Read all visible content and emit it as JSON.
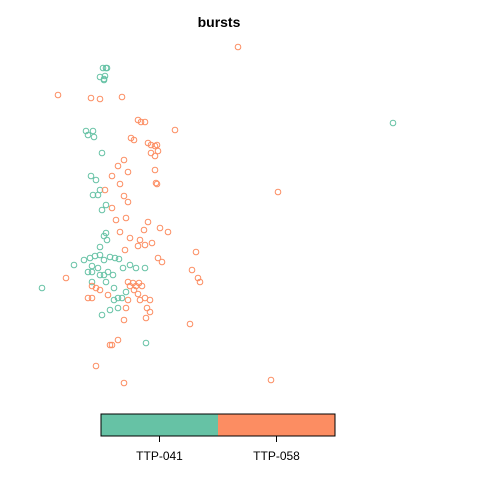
{
  "chart_data": {
    "type": "scatter",
    "title": "bursts",
    "xlabel": "",
    "ylabel": "",
    "legend": {
      "type": "color-bar",
      "placement": "bottom",
      "categories": [
        "TTP-041",
        "TTP-058"
      ]
    },
    "colors": {
      "TTP-041": "#66c2a5",
      "TTP-058": "#fc8d62"
    },
    "grid": false,
    "axes_visible": false,
    "series": [
      {
        "name": "TTP-041",
        "points": [
          [
            106,
            68
          ],
          [
            103,
            68
          ],
          [
            107,
            68
          ],
          [
            105,
            76
          ],
          [
            100,
            77
          ],
          [
            104,
            79
          ],
          [
            104,
            80
          ],
          [
            86,
            131
          ],
          [
            93,
            131
          ],
          [
            88,
            135
          ],
          [
            94,
            137
          ],
          [
            102,
            153
          ],
          [
            91,
            176
          ],
          [
            96,
            180
          ],
          [
            100,
            190
          ],
          [
            93,
            195
          ],
          [
            98,
            195
          ],
          [
            106,
            205
          ],
          [
            102,
            210
          ],
          [
            106,
            233
          ],
          [
            104,
            236
          ],
          [
            107,
            240
          ],
          [
            100,
            247
          ],
          [
            95,
            256
          ],
          [
            90,
            258
          ],
          [
            84,
            260
          ],
          [
            100,
            255
          ],
          [
            104,
            260
          ],
          [
            110,
            257
          ],
          [
            115,
            258
          ],
          [
            119,
            259
          ],
          [
            92,
            266
          ],
          [
            98,
            268
          ],
          [
            88,
            272
          ],
          [
            92,
            272
          ],
          [
            100,
            275
          ],
          [
            104,
            275
          ],
          [
            108,
            272
          ],
          [
            113,
            275
          ],
          [
            123,
            268
          ],
          [
            130,
            265
          ],
          [
            136,
            268
          ],
          [
            145,
            268
          ],
          [
            74,
            265
          ],
          [
            42,
            288
          ],
          [
            92,
            282
          ],
          [
            106,
            282
          ],
          [
            114,
            288
          ],
          [
            118,
            298
          ],
          [
            114,
            300
          ],
          [
            122,
            298
          ],
          [
            126,
            292
          ],
          [
            118,
            308
          ],
          [
            110,
            310
          ],
          [
            102,
            315
          ],
          [
            146,
            343
          ],
          [
            393,
            123
          ]
        ]
      },
      {
        "name": "TTP-058",
        "points": [
          [
            238,
            47
          ],
          [
            58,
            95
          ],
          [
            91,
            98
          ],
          [
            100,
            99
          ],
          [
            122,
            97
          ],
          [
            138,
            120
          ],
          [
            141,
            122
          ],
          [
            145,
            122
          ],
          [
            175,
            130
          ],
          [
            131,
            138
          ],
          [
            134,
            140
          ],
          [
            148,
            143
          ],
          [
            151,
            145
          ],
          [
            155,
            146
          ],
          [
            157,
            145
          ],
          [
            151,
            153
          ],
          [
            155,
            156
          ],
          [
            158,
            151
          ],
          [
            124,
            160
          ],
          [
            118,
            166
          ],
          [
            112,
            176
          ],
          [
            128,
            172
          ],
          [
            155,
            170
          ],
          [
            156,
            183
          ],
          [
            157,
            184
          ],
          [
            105,
            190
          ],
          [
            120,
            184
          ],
          [
            124,
            196
          ],
          [
            128,
            202
          ],
          [
            112,
            208
          ],
          [
            116,
            220
          ],
          [
            126,
            218
          ],
          [
            148,
            222
          ],
          [
            144,
            230
          ],
          [
            160,
            228
          ],
          [
            168,
            232
          ],
          [
            120,
            232
          ],
          [
            130,
            238
          ],
          [
            140,
            240
          ],
          [
            125,
            250
          ],
          [
            138,
            246
          ],
          [
            145,
            245
          ],
          [
            152,
            243
          ],
          [
            158,
            258
          ],
          [
            162,
            262
          ],
          [
            196,
            252
          ],
          [
            192,
            270
          ],
          [
            198,
            278
          ],
          [
            200,
            282
          ],
          [
            278,
            192
          ],
          [
            66,
            278
          ],
          [
            92,
            286
          ],
          [
            96,
            288
          ],
          [
            100,
            290
          ],
          [
            88,
            298
          ],
          [
            92,
            298
          ],
          [
            108,
            295
          ],
          [
            128,
            282
          ],
          [
            130,
            286
          ],
          [
            133,
            283
          ],
          [
            136,
            286
          ],
          [
            139,
            283
          ],
          [
            142,
            286
          ],
          [
            134,
            290
          ],
          [
            138,
            294
          ],
          [
            128,
            300
          ],
          [
            140,
            300
          ],
          [
            145,
            298
          ],
          [
            150,
            300
          ],
          [
            126,
            308
          ],
          [
            147,
            308
          ],
          [
            150,
            312
          ],
          [
            124,
            320
          ],
          [
            146,
            318
          ],
          [
            190,
            324
          ],
          [
            118,
            340
          ],
          [
            112,
            345
          ],
          [
            110,
            345
          ],
          [
            96,
            366
          ],
          [
            124,
            383
          ],
          [
            271,
            380
          ]
        ]
      }
    ]
  }
}
